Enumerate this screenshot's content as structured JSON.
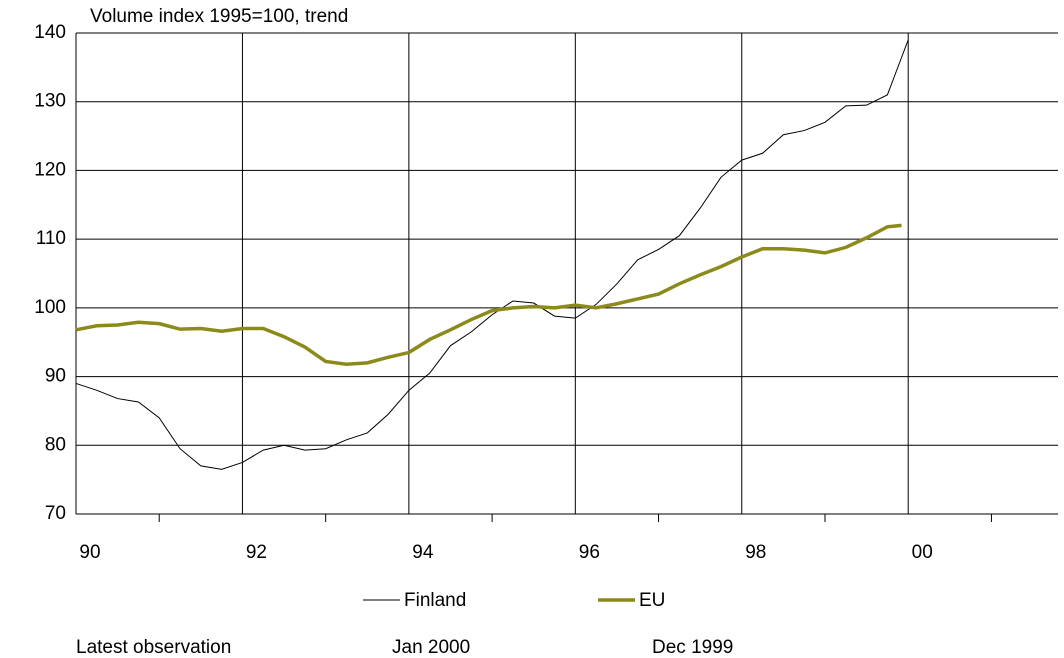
{
  "chart_data": {
    "type": "line",
    "subtitle": "Volume index 1995=100, trend",
    "ylim": [
      70,
      140
    ],
    "yticks": [
      70,
      80,
      90,
      100,
      110,
      120,
      130,
      140
    ],
    "xlim": [
      1990,
      2001.8
    ],
    "xticks": [
      {
        "value": 1990,
        "label": "90"
      },
      {
        "value": 1992,
        "label": "92"
      },
      {
        "value": 1994,
        "label": "94"
      },
      {
        "value": 1996,
        "label": "96"
      },
      {
        "value": 1998,
        "label": "98"
      },
      {
        "value": 2000,
        "label": "00"
      }
    ],
    "xminor_ticks": [
      1991,
      1993,
      1995,
      1997,
      1999,
      2001
    ],
    "grid": true,
    "series": [
      {
        "name": "Finland",
        "color": "#000000",
        "x": [
          1990,
          1990.25,
          1990.5,
          1990.75,
          1991,
          1991.25,
          1991.5,
          1991.75,
          1992,
          1992.25,
          1992.5,
          1992.75,
          1993,
          1993.25,
          1993.5,
          1993.75,
          1994,
          1994.25,
          1994.5,
          1994.75,
          1995,
          1995.25,
          1995.5,
          1995.75,
          1996,
          1996.25,
          1996.5,
          1996.75,
          1997,
          1997.25,
          1997.5,
          1997.75,
          1998,
          1998.25,
          1998.5,
          1998.75,
          1999,
          1999.25,
          1999.5,
          1999.75,
          2000
        ],
        "values": [
          89,
          88,
          86.8,
          86.3,
          84,
          79.5,
          77,
          76.5,
          77.5,
          79.3,
          80,
          79.3,
          79.5,
          80.8,
          81.8,
          84.5,
          88,
          90.5,
          94.5,
          96.5,
          99,
          101,
          100.7,
          98.8,
          98.5,
          100.5,
          103.5,
          107,
          108.5,
          110.5,
          114.5,
          119,
          121.5,
          122.5,
          125.2,
          125.8,
          127,
          129.4,
          129.5,
          131,
          139
        ]
      },
      {
        "name": "EU",
        "color": "#8b8a1a",
        "x": [
          1990,
          1990.25,
          1990.5,
          1990.75,
          1991,
          1991.25,
          1991.5,
          1991.75,
          1992,
          1992.25,
          1992.5,
          1992.75,
          1993,
          1993.25,
          1993.5,
          1993.75,
          1994,
          1994.25,
          1994.5,
          1994.75,
          1995,
          1995.25,
          1995.5,
          1995.75,
          1996,
          1996.25,
          1996.5,
          1996.75,
          1997,
          1997.25,
          1997.5,
          1997.75,
          1998,
          1998.25,
          1998.5,
          1998.75,
          1999,
          1999.25,
          1999.5,
          1999.75,
          1999.92
        ],
        "values": [
          96.8,
          97.4,
          97.5,
          97.9,
          97.7,
          96.9,
          97,
          96.6,
          97,
          97,
          95.8,
          94.3,
          92.2,
          91.8,
          92,
          92.8,
          93.5,
          95.4,
          96.8,
          98.3,
          99.6,
          100,
          100.2,
          100,
          100.4,
          100,
          100.6,
          101.3,
          102,
          103.5,
          104.8,
          106,
          107.4,
          108.6,
          108.6,
          108.4,
          108,
          108.8,
          110.2,
          111.8,
          112
        ]
      }
    ],
    "footer": {
      "label": "Latest observation",
      "observations": [
        "Jan 2000",
        "Dec 1999"
      ]
    }
  }
}
